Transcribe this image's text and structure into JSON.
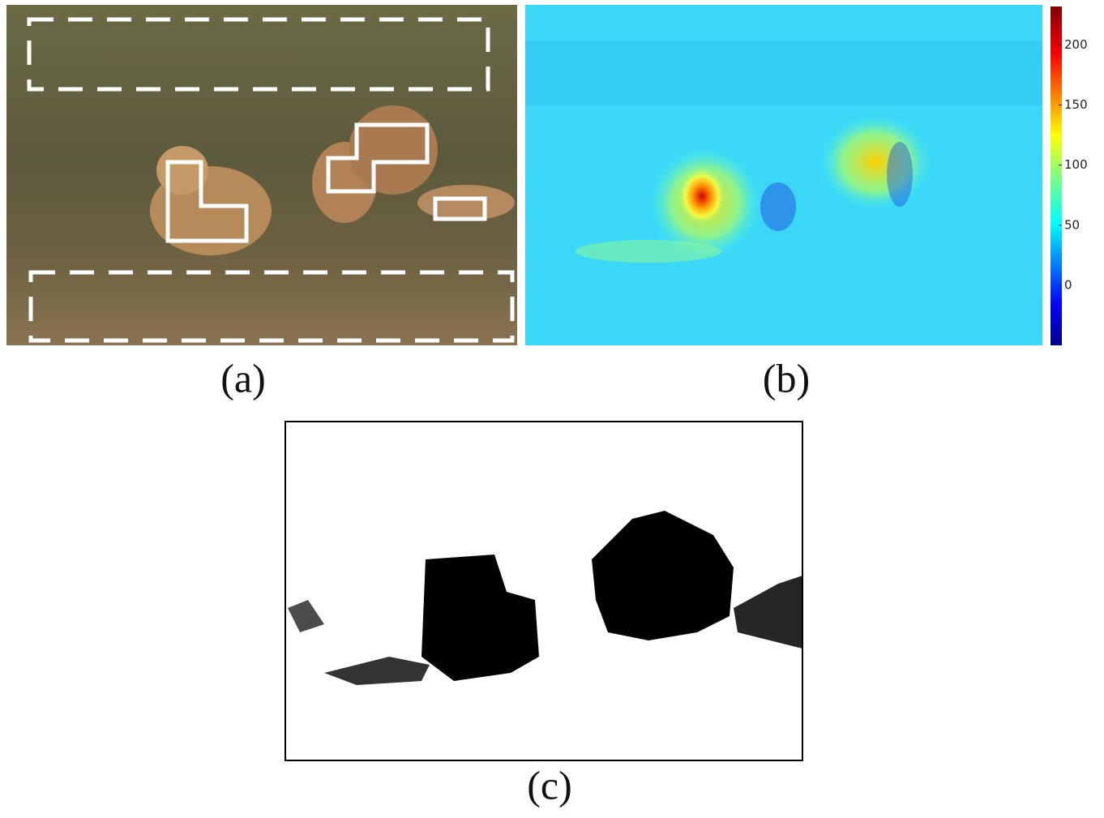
{
  "panels": [
    {
      "label": "(a)"
    },
    {
      "label": "(b)",
      "colorbar": {
        "range": [
          -50,
          232
        ],
        "ticks": [
          0,
          50,
          100,
          150,
          200
        ]
      }
    },
    {
      "label": "(c)"
    }
  ]
}
